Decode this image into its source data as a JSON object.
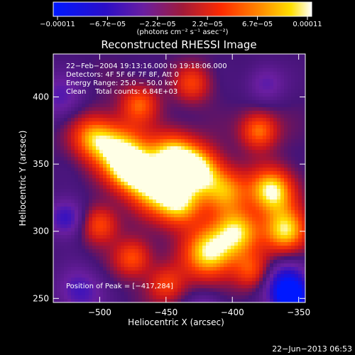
{
  "chart_data": {
    "type": "heatmap",
    "title": "Reconstructed RHESSI Image",
    "xlabel": "Heliocentric X (arcsec)",
    "ylabel": "Heliocentric Y (arcsec)",
    "xlim": [
      -535,
      -345
    ],
    "ylim": [
      247,
      432
    ],
    "x_ticks": [
      -500,
      -450,
      -400,
      -350
    ],
    "x_tick_labels": [
      "−500",
      "−450",
      "−400",
      "−350"
    ],
    "y_ticks": [
      250,
      300,
      350,
      400
    ],
    "y_tick_labels": [
      "250",
      "300",
      "350",
      "400"
    ],
    "colorbar": {
      "min": -0.00011,
      "max": 0.00011,
      "tick_labels": [
        "−0.00011",
        "−6.7e−05",
        "−2.2e−05",
        "2.2e−05",
        "6.7e−05",
        "0.00011"
      ],
      "unit_line": "(photons cm⁻² s⁻¹ asec⁻²)"
    },
    "info_lines": [
      "22−Feb−2004 19:13:16.000 to 19:18:06.000",
      "Detectors: 4F 5F 6F 7F 8F, Att 0",
      "Energy Range: 25.0 − 50.0 keV",
      "Clean    Total counts: 6.84E+03"
    ],
    "peak_label": "Position of Peak = [−417,284]",
    "peak_position": [
      -417,
      284
    ],
    "blobs": [
      {
        "x": -505,
        "y": 370,
        "r": 12,
        "v": 0.7
      },
      {
        "x": -485,
        "y": 360,
        "r": 14,
        "v": 0.8
      },
      {
        "x": -475,
        "y": 345,
        "r": 12,
        "v": 0.9
      },
      {
        "x": -460,
        "y": 330,
        "r": 12,
        "v": 0.7
      },
      {
        "x": -445,
        "y": 355,
        "r": 13,
        "v": 1.0
      },
      {
        "x": -440,
        "y": 320,
        "r": 12,
        "v": 0.9
      },
      {
        "x": -425,
        "y": 345,
        "r": 12,
        "v": 0.9
      },
      {
        "x": -417,
        "y": 284,
        "r": 14,
        "v": 1.0
      },
      {
        "x": -405,
        "y": 330,
        "r": 12,
        "v": 0.7
      },
      {
        "x": -395,
        "y": 300,
        "r": 12,
        "v": 0.8
      },
      {
        "x": -370,
        "y": 330,
        "r": 12,
        "v": 1.0
      },
      {
        "x": -360,
        "y": 300,
        "r": 12,
        "v": 0.9
      },
      {
        "x": -470,
        "y": 395,
        "r": 10,
        "v": 0.6
      },
      {
        "x": -430,
        "y": 410,
        "r": 10,
        "v": 0.5
      },
      {
        "x": -380,
        "y": 375,
        "r": 10,
        "v": 0.7
      },
      {
        "x": -500,
        "y": 305,
        "r": 10,
        "v": 0.6
      },
      {
        "x": -475,
        "y": 280,
        "r": 10,
        "v": 0.6
      },
      {
        "x": -450,
        "y": 260,
        "r": 10,
        "v": 0.5
      },
      {
        "x": -385,
        "y": 270,
        "r": 10,
        "v": 0.5
      },
      {
        "x": -525,
        "y": 310,
        "r": 10,
        "v": -0.6
      },
      {
        "x": -515,
        "y": 255,
        "r": 12,
        "v": -0.5
      },
      {
        "x": -360,
        "y": 260,
        "r": 12,
        "v": -0.8
      },
      {
        "x": -355,
        "y": 250,
        "r": 8,
        "v": -1.0
      },
      {
        "x": -375,
        "y": 410,
        "r": 10,
        "v": -0.4
      },
      {
        "x": -530,
        "y": 400,
        "r": 12,
        "v": -0.4
      },
      {
        "x": -420,
        "y": 240,
        "r": 10,
        "v": -0.4
      }
    ]
  },
  "footer_timestamp": "22−Jun−2013 06:53"
}
